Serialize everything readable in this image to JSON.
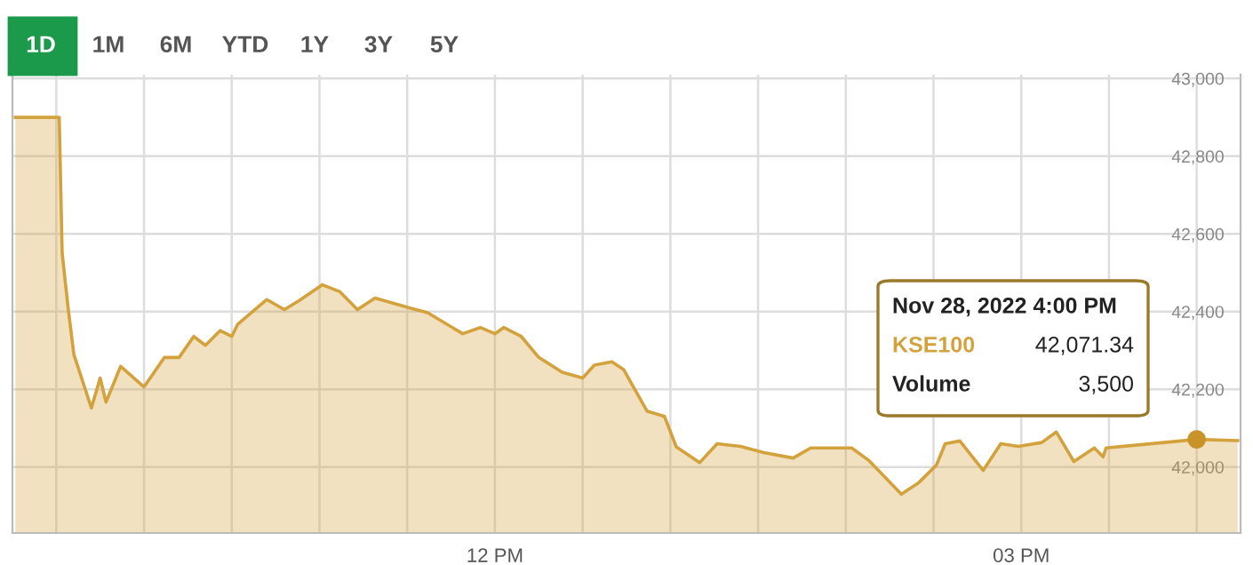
{
  "chart_data": {
    "type": "area",
    "series": [
      {
        "color": "#d4a23c",
        "x": [
          "2022-11-28T09:16",
          "2022-11-28T09:31",
          "2022-11-28T09:32",
          "2022-11-28T09:34",
          "2022-11-28T09:36",
          "2022-11-28T09:42",
          "2022-11-28T09:45",
          "2022-11-28T09:47",
          "2022-11-28T09:52",
          "2022-11-28T10:00",
          "2022-11-28T10:07",
          "2022-11-28T10:12",
          "2022-11-28T10:17",
          "2022-11-28T10:21",
          "2022-11-28T10:26",
          "2022-11-28T10:30",
          "2022-11-28T10:32",
          "2022-11-28T10:42",
          "2022-11-28T10:48",
          "2022-11-28T10:53",
          "2022-11-28T11:01",
          "2022-11-28T11:07",
          "2022-11-28T11:13",
          "2022-11-28T11:19",
          "2022-11-28T11:31",
          "2022-11-28T11:37",
          "2022-11-28T11:49",
          "2022-11-28T11:55",
          "2022-11-28T12:00",
          "2022-11-28T12:03",
          "2022-11-28T12:09",
          "2022-11-28T12:15",
          "2022-11-28T12:23",
          "2022-11-28T12:30",
          "2022-11-28T12:34",
          "2022-11-28T12:40",
          "2022-11-28T12:44",
          "2022-11-28T12:52",
          "2022-11-28T12:58",
          "2022-11-28T13:02",
          "2022-11-28T13:10",
          "2022-11-28T13:16",
          "2022-11-28T13:24",
          "2022-11-28T13:32",
          "2022-11-28T13:42",
          "2022-11-28T13:48",
          "2022-11-28T14:02",
          "2022-11-28T14:08",
          "2022-11-28T14:19",
          "2022-11-28T14:25",
          "2022-11-28T14:31",
          "2022-11-28T14:34",
          "2022-11-28T14:39",
          "2022-11-28T14:47",
          "2022-11-28T14:53",
          "2022-11-28T14:59",
          "2022-11-28T15:07",
          "2022-11-28T15:12",
          "2022-11-28T15:18",
          "2022-11-28T15:25",
          "2022-11-28T15:28",
          "2022-11-28T15:29",
          "2022-11-28T16:00",
          "2022-11-28T16:14"
        ],
        "values": [
          42900,
          42900,
          42551,
          42412,
          42290,
          42152,
          42229,
          42167,
          42259,
          42206,
          42282,
          42282,
          42336,
          42313,
          42351,
          42336,
          42367,
          42431,
          42405,
          42428,
          42469,
          42451,
          42405,
          42435,
          42409,
          42397,
          42343,
          42359,
          42343,
          42359,
          42336,
          42282,
          42244,
          42229,
          42262,
          42271,
          42251,
          42144,
          42130,
          42052,
          42011,
          42060,
          42053,
          42037,
          42023,
          42049,
          42049,
          42016,
          41930,
          41960,
          42005,
          42060,
          42067,
          41991,
          42060,
          42053,
          42063,
          42090,
          42014,
          42049,
          42026,
          42049,
          42071,
          42068
        ]
      },
      {
        "type": "scatter",
        "color": "#c8942a",
        "marker": "circle",
        "x": [
          "2022-11-28T16:00"
        ],
        "values": [
          42071
        ]
      }
    ],
    "xlim": [
      "2022-11-28T09:15",
      "2022-11-28T16:15"
    ],
    "xticks": [
      {
        "value": "2022-11-28T09:30",
        "label": null
      },
      {
        "value": "2022-11-28T10:00",
        "label": null
      },
      {
        "value": "2022-11-28T10:30",
        "label": null
      },
      {
        "value": "2022-11-28T11:00",
        "label": null
      },
      {
        "value": "2022-11-28T11:30",
        "label": null
      },
      {
        "value": "2022-11-28T12:00",
        "label": "12 PM"
      },
      {
        "value": "2022-11-28T12:30",
        "label": null
      },
      {
        "value": "2022-11-28T13:00",
        "label": null
      },
      {
        "value": "2022-11-28T13:30",
        "label": null
      },
      {
        "value": "2022-11-28T14:00",
        "label": null
      },
      {
        "value": "2022-11-28T14:30",
        "label": null
      },
      {
        "value": "2022-11-28T15:00",
        "label": "03 PM"
      },
      {
        "value": "2022-11-28T15:30",
        "label": null
      },
      {
        "value": "2022-11-28T16:00",
        "label": null
      }
    ],
    "ylim": [
      41830,
      43010
    ],
    "yticks": [
      {
        "value": 42000,
        "label": "42,000"
      },
      {
        "value": 42200,
        "label": "42,200"
      },
      {
        "value": 42400,
        "label": "42,400"
      },
      {
        "value": 42600,
        "label": "42,600"
      },
      {
        "value": 42800,
        "label": "42,800"
      },
      {
        "value": 43000,
        "label": "43,000"
      }
    ],
    "grid": true,
    "annotations": [
      "1D",
      "1M",
      "6M",
      "YTD",
      "1Y",
      "3Y",
      "5Y",
      "Nov 28, 2022 4:00 PM",
      "KSE100",
      "42,071.34",
      "Volume",
      "3,500"
    ]
  }
}
